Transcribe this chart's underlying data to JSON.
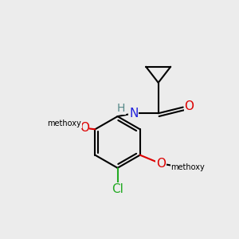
{
  "bg": "#ececec",
  "bond_color": "#000000",
  "N_color": "#2020dd",
  "O_color": "#dd0000",
  "Cl_color": "#22aa22",
  "H_color": "#558888",
  "lw": 1.5,
  "fs": 11,
  "fs_small": 10
}
